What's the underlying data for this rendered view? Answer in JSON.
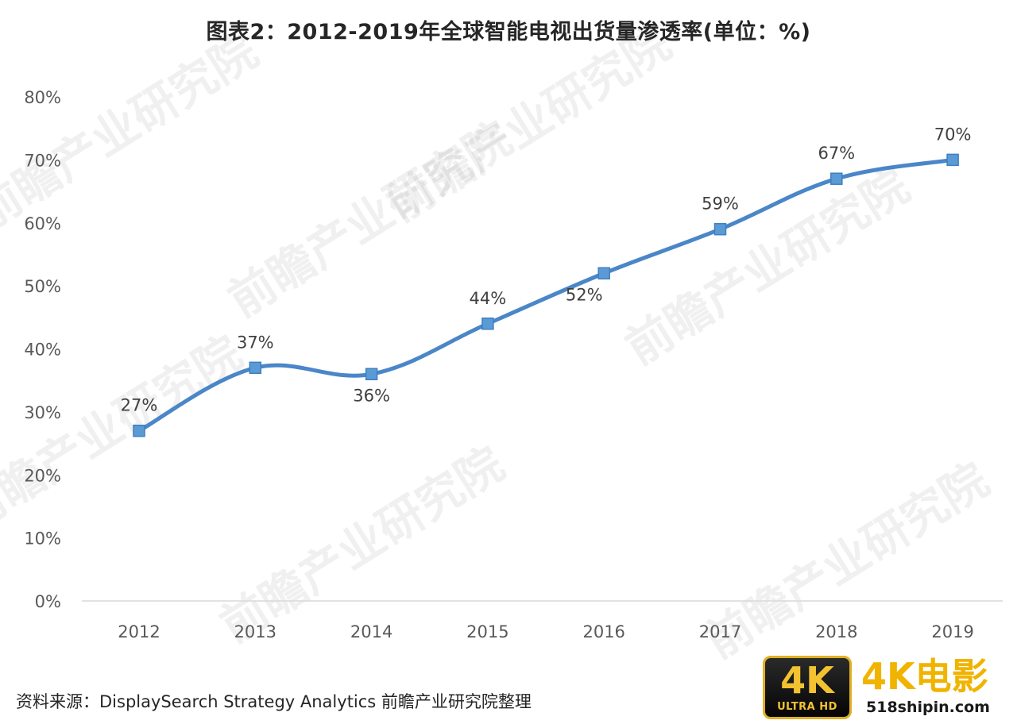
{
  "title": "图表2：2012-2019年全球智能电视出货量渗透率(单位：%)",
  "source": "资料来源：DisplaySearch Strategy Analytics 前瞻产业研究院整理",
  "watermark": "前瞻产业研究院",
  "badge": {
    "logo_text": "4K",
    "logo_sub": "ULTRA HD",
    "brand": "4K电影",
    "site": "518shipin.com"
  },
  "colors": {
    "line": "#4a86c8",
    "marker": "#5b9bd5",
    "marker_stroke": "#3f7fc0",
    "axis": "#d9d9d9",
    "text": "#595959",
    "label": "#404040"
  },
  "chart_data": {
    "type": "line",
    "categories": [
      "2012",
      "2013",
      "2014",
      "2015",
      "2016",
      "2017",
      "2018",
      "2019"
    ],
    "series": [
      {
        "values": [
          27,
          37,
          36,
          44,
          52,
          59,
          67,
          70
        ],
        "labels": [
          "27%",
          "37%",
          "36%",
          "44%",
          "52%",
          "59%",
          "67%",
          "70%"
        ]
      }
    ],
    "ylim": [
      0,
      80
    ],
    "yticks": [
      0,
      10,
      20,
      30,
      40,
      50,
      60,
      70,
      80
    ],
    "ytick_labels": [
      "0%",
      "10%",
      "20%",
      "30%",
      "40%",
      "50%",
      "60%",
      "70%",
      "80%"
    ],
    "smooth": true,
    "grid": false
  }
}
